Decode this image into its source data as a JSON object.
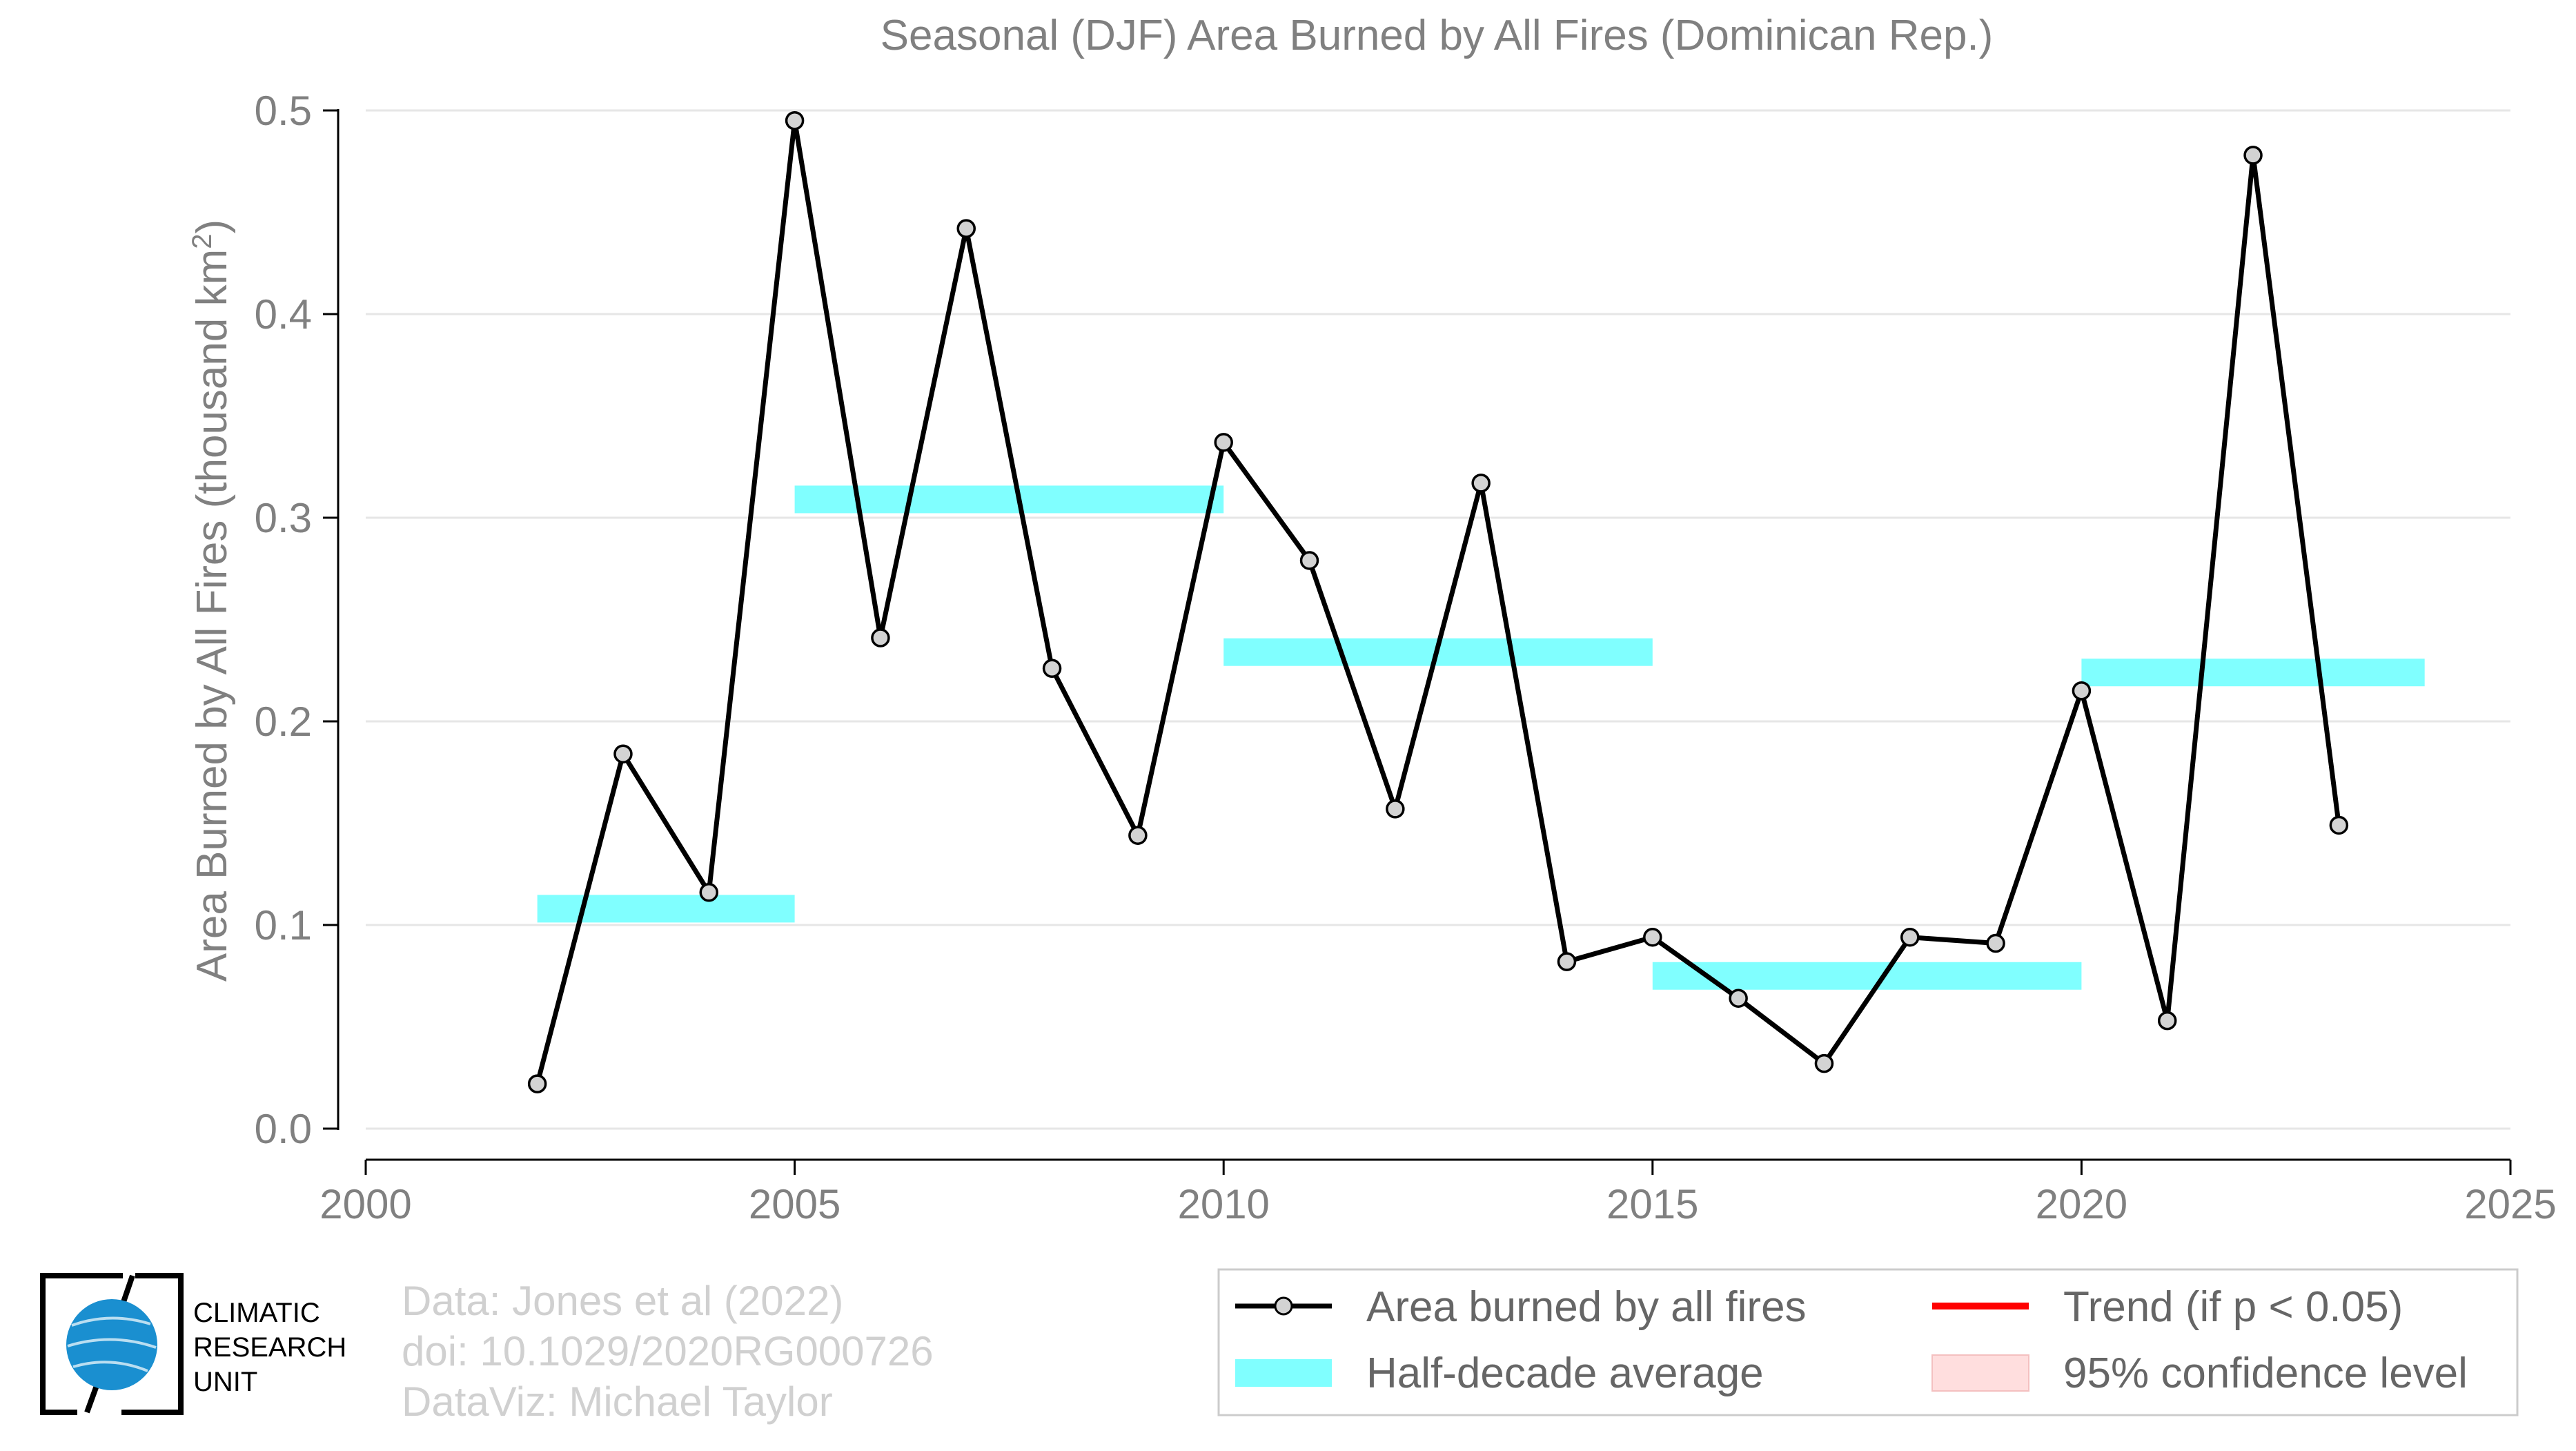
{
  "chart_data": {
    "type": "line",
    "title": "Seasonal (DJF) Area Burned by All Fires (Dominican Rep.)",
    "ylabel_main": "Area Burned by All Fires (thousand km",
    "ylabel_sup": "2",
    "ylabel_close": ")",
    "xlabel": "",
    "xlim": [
      2000,
      2025
    ],
    "ylim": [
      0,
      0.5
    ],
    "xticks": [
      2000,
      2005,
      2010,
      2015,
      2020,
      2025
    ],
    "xtick_labels": [
      "2000",
      "2005",
      "2010",
      "2015",
      "2020",
      "2025"
    ],
    "yticks": [
      0.0,
      0.1,
      0.2,
      0.3,
      0.4,
      0.5
    ],
    "ytick_labels": [
      "0.0",
      "0.1",
      "0.2",
      "0.3",
      "0.4",
      "0.5"
    ],
    "grid": "horizontal",
    "series": [
      {
        "name": "Area burned by all fires",
        "color": "#000000",
        "marker_fill": "#d3d3d3",
        "x": [
          2002,
          2003,
          2004,
          2005,
          2006,
          2007,
          2008,
          2009,
          2010,
          2011,
          2012,
          2013,
          2014,
          2015,
          2016,
          2017,
          2018,
          2019,
          2020,
          2021,
          2022,
          2023
        ],
        "y": [
          0.022,
          0.184,
          0.116,
          0.495,
          0.241,
          0.442,
          0.226,
          0.144,
          0.337,
          0.279,
          0.157,
          0.317,
          0.082,
          0.094,
          0.064,
          0.032,
          0.094,
          0.091,
          0.215,
          0.053,
          0.478,
          0.149
        ]
      }
    ],
    "half_decade_average": {
      "name": "Half-decade average",
      "color": "#80ffff",
      "segments": [
        {
          "x0": 2002,
          "x1": 2005,
          "y": 0.108
        },
        {
          "x0": 2005,
          "x1": 2010,
          "y": 0.309
        },
        {
          "x0": 2010,
          "x1": 2015,
          "y": 0.234
        },
        {
          "x0": 2015,
          "x1": 2020,
          "y": 0.075
        },
        {
          "x0": 2020,
          "x1": 2024,
          "y": 0.224
        }
      ]
    },
    "legend": {
      "placement": "bottom-right",
      "entries": [
        {
          "label": "Area burned by all fires",
          "kind": "line-marker",
          "color": "#000000"
        },
        {
          "label": "Trend (if p < 0.05)",
          "kind": "line",
          "color": "#ff0000"
        },
        {
          "label": "Half-decade average",
          "kind": "band",
          "color": "#80ffff"
        },
        {
          "label": "95% confidence level",
          "kind": "patch",
          "color": "#ffdede"
        }
      ]
    }
  },
  "credits": {
    "line1": "Data: Jones et al (2022)",
    "line2": "doi: 10.1029/2020RG000726",
    "line3": "DataViz: Michael Taylor"
  },
  "logo": {
    "line1": "CLIMATIC",
    "line2": "RESEARCH",
    "line3": "UNIT",
    "globe_color": "#1a8fd0"
  }
}
